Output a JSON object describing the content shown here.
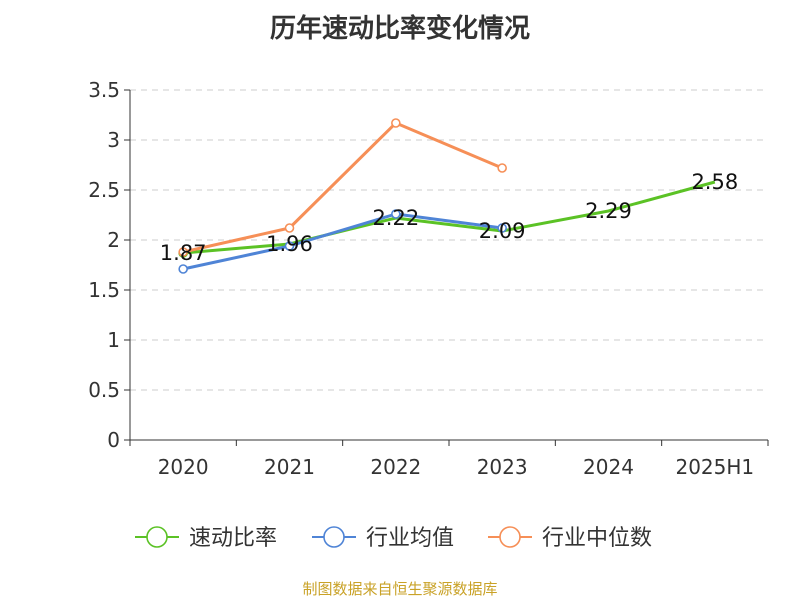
{
  "chart_data": {
    "type": "line",
    "title": "历年速动比率变化情况",
    "categories": [
      "2020",
      "2021",
      "2022",
      "2023",
      "2024",
      "2025H1"
    ],
    "ylim": [
      0,
      3.5
    ],
    "yticks": [
      "0",
      "0.5",
      "1",
      "1.5",
      "2",
      "2.5",
      "3",
      "3.5"
    ],
    "grid": true,
    "legend_position": "bottom-center",
    "series": [
      {
        "name": "速动比率",
        "color": "#5bc225",
        "values": [
          1.87,
          1.96,
          2.22,
          2.09,
          2.29,
          2.58
        ],
        "labels": [
          "1.87",
          "1.96",
          "2.22",
          "2.09",
          "2.29",
          "2.58"
        ]
      },
      {
        "name": "行业均值",
        "color": "#4f84d6",
        "values": [
          1.71,
          1.94,
          2.26,
          2.12,
          null,
          null
        ]
      },
      {
        "name": "行业中位数",
        "color": "#f68f57",
        "values": [
          1.88,
          2.12,
          3.17,
          2.72,
          null,
          null
        ]
      }
    ]
  },
  "footer": {
    "source": "制图数据来自恒生聚源数据库"
  }
}
